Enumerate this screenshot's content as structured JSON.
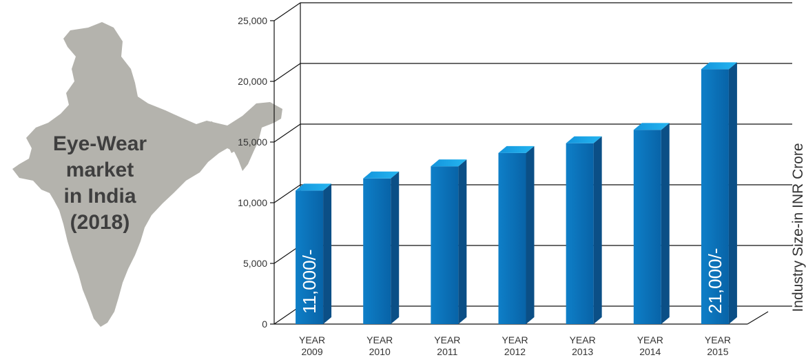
{
  "map_title_lines": [
    "Eye-Wear",
    "market",
    "in India",
    "(2018)"
  ],
  "colors": {
    "bar_front": "#0a72b9",
    "bar_top": "#1aa9ea",
    "bar_side": "#0b4f86",
    "map": "#b4b3ad",
    "grid": "#111111"
  },
  "chart_data": {
    "type": "bar",
    "categories": [
      [
        "YEAR",
        "2009"
      ],
      [
        "YEAR",
        "2010"
      ],
      [
        "YEAR",
        "2011"
      ],
      [
        "YEAR",
        "2012"
      ],
      [
        "YEAR",
        "2013"
      ],
      [
        "YEAR",
        "2014"
      ],
      [
        "YEAR",
        "2015"
      ]
    ],
    "values": [
      11000,
      12000,
      13000,
      14100,
      14900,
      16000,
      21000
    ],
    "data_labels": [
      {
        "index": 0,
        "text": "11,000/-"
      },
      {
        "index": 6,
        "text": "21,000/-"
      }
    ],
    "y_ticks": [
      "0",
      "5,000",
      "10,000",
      "15,000",
      "20,000",
      "25,000"
    ],
    "ylim": [
      0,
      25000
    ],
    "ylabel": "Industry Size-in INR Crore",
    "grid": true,
    "style": "3d-column"
  }
}
